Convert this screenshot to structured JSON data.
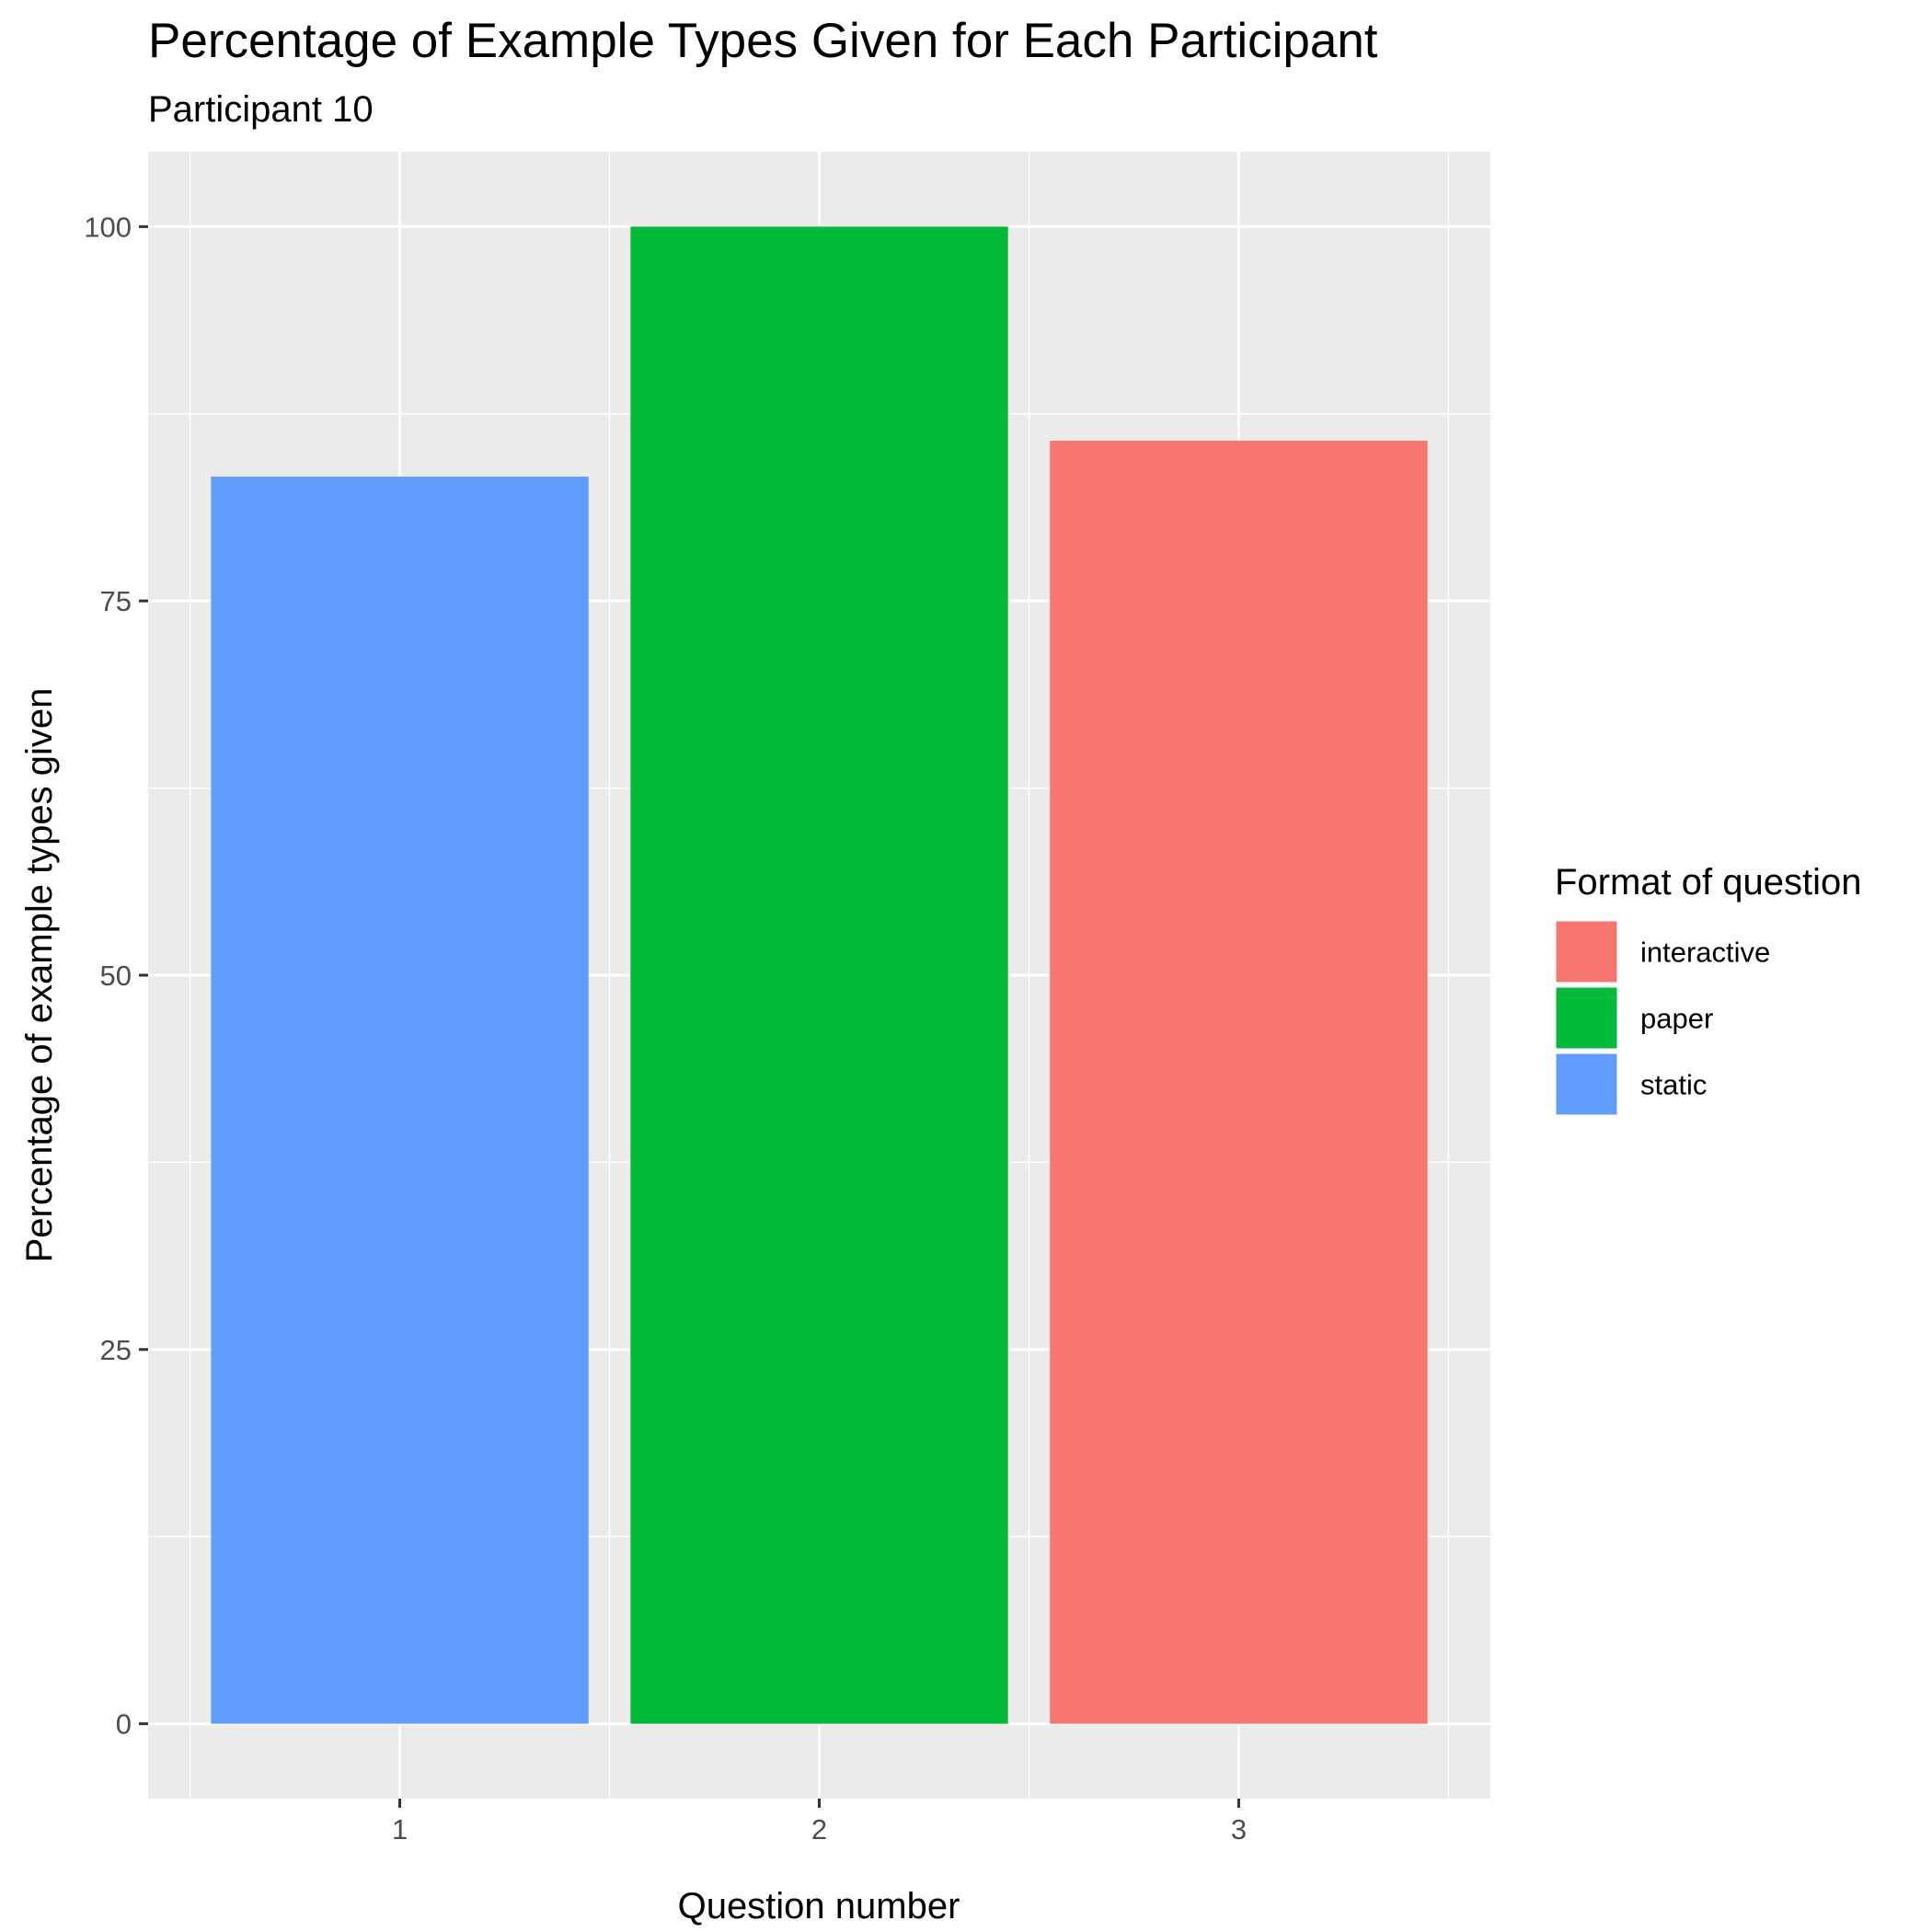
{
  "chart_data": {
    "type": "bar",
    "title": "Percentage of Example Types Given for Each Participant",
    "subtitle": "Participant 10",
    "xlabel": "Question number",
    "ylabel": "Percentage of example types given",
    "categories": [
      "1",
      "2",
      "3"
    ],
    "values": [
      83.3,
      100,
      85.7
    ],
    "bar_formats": [
      "static",
      "paper",
      "interactive"
    ],
    "ylim": [
      -5,
      105
    ],
    "yticks": [
      0,
      25,
      50,
      75,
      100
    ],
    "grid": true,
    "legend": {
      "title": "Format of question",
      "position": "right",
      "entries": [
        {
          "label": "interactive",
          "color": "#F8766D"
        },
        {
          "label": "paper",
          "color": "#00BA38"
        },
        {
          "label": "static",
          "color": "#619CFF"
        }
      ]
    },
    "colors": {
      "panel_background": "#EBEBEB",
      "grid": "#FFFFFF"
    }
  }
}
